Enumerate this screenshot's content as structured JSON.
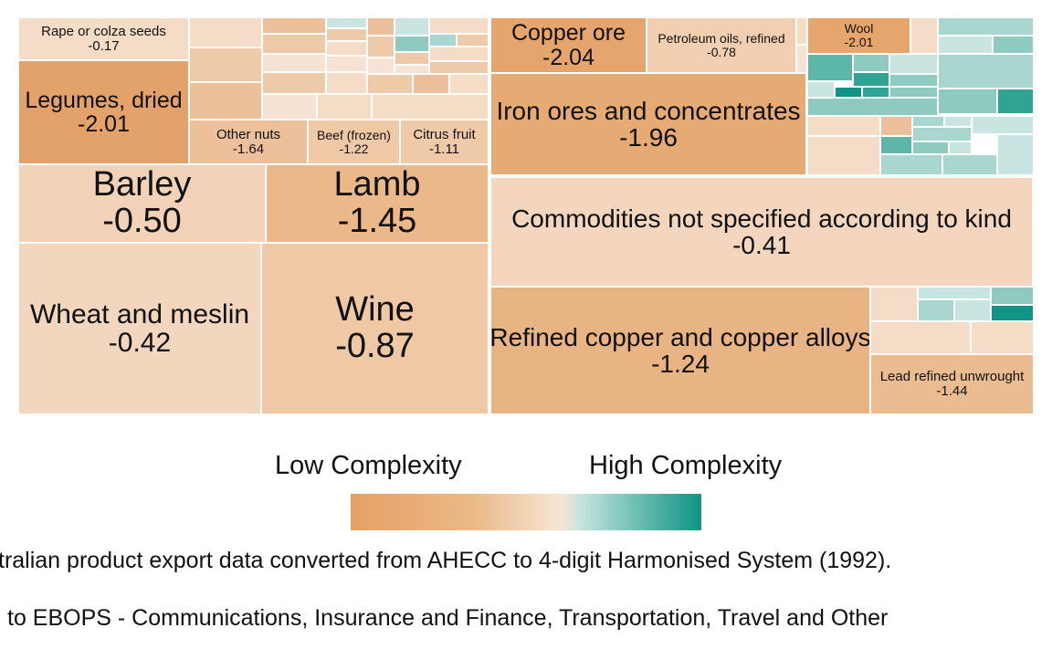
{
  "chart_data": {
    "type": "treemap",
    "colors": {
      "low": "#e5a164",
      "mid": "#f7e6d6",
      "high": "#0f9485"
    },
    "labeled_tiles": [
      {
        "name": "Rape or colza seeds",
        "value": "-0.17",
        "color": "#f4dcc6"
      },
      {
        "name": "Legumes, dried",
        "value": "-2.01",
        "color": "#e3a26a"
      },
      {
        "name": "Other nuts",
        "value": "-1.64",
        "color": "#ecc09a"
      },
      {
        "name": "Beef (frozen)",
        "value": "-1.22",
        "color": "#efc9a5"
      },
      {
        "name": "Citrus fruit",
        "value": "-1.11",
        "color": "#efcaa8"
      },
      {
        "name": "Barley",
        "value": "-0.50",
        "color": "#f2d3b8"
      },
      {
        "name": "Lamb",
        "value": "-1.45",
        "color": "#ebb88a"
      },
      {
        "name": "Wheat and meslin",
        "value": "-0.42",
        "color": "#f3d6be"
      },
      {
        "name": "Wine",
        "value": "-0.87",
        "color": "#efc8a5"
      },
      {
        "name": "Copper ore",
        "value": "-2.04",
        "color": "#e5a56d"
      },
      {
        "name": "Petroleum oils, refined",
        "value": "-0.78",
        "color": "#f1cfb0"
      },
      {
        "name": "Wool",
        "value": "-2.01",
        "color": "#e5a56d"
      },
      {
        "name": "Iron ores and concentrates",
        "value": "-1.96",
        "color": "#e6aa74"
      },
      {
        "name": "Commodities not specified according to kind",
        "value": "-0.41",
        "color": "#f3d6bd"
      },
      {
        "name": "Refined copper and copper alloys",
        "value": "-1.24",
        "color": "#e9b483"
      },
      {
        "name": "Lead refined unwrought",
        "value": "-1.44",
        "color": "#ebbc8f"
      }
    ],
    "legend": {
      "low_label": "Low Complexity",
      "high_label": "High Complexity"
    },
    "footnotes": [
      "tralian product export data converted from AHECC to 4-digit Harmonised System (1992).",
      "to EBOPS - Communications, Insurance and Finance, Transportation, Travel and Other"
    ]
  }
}
